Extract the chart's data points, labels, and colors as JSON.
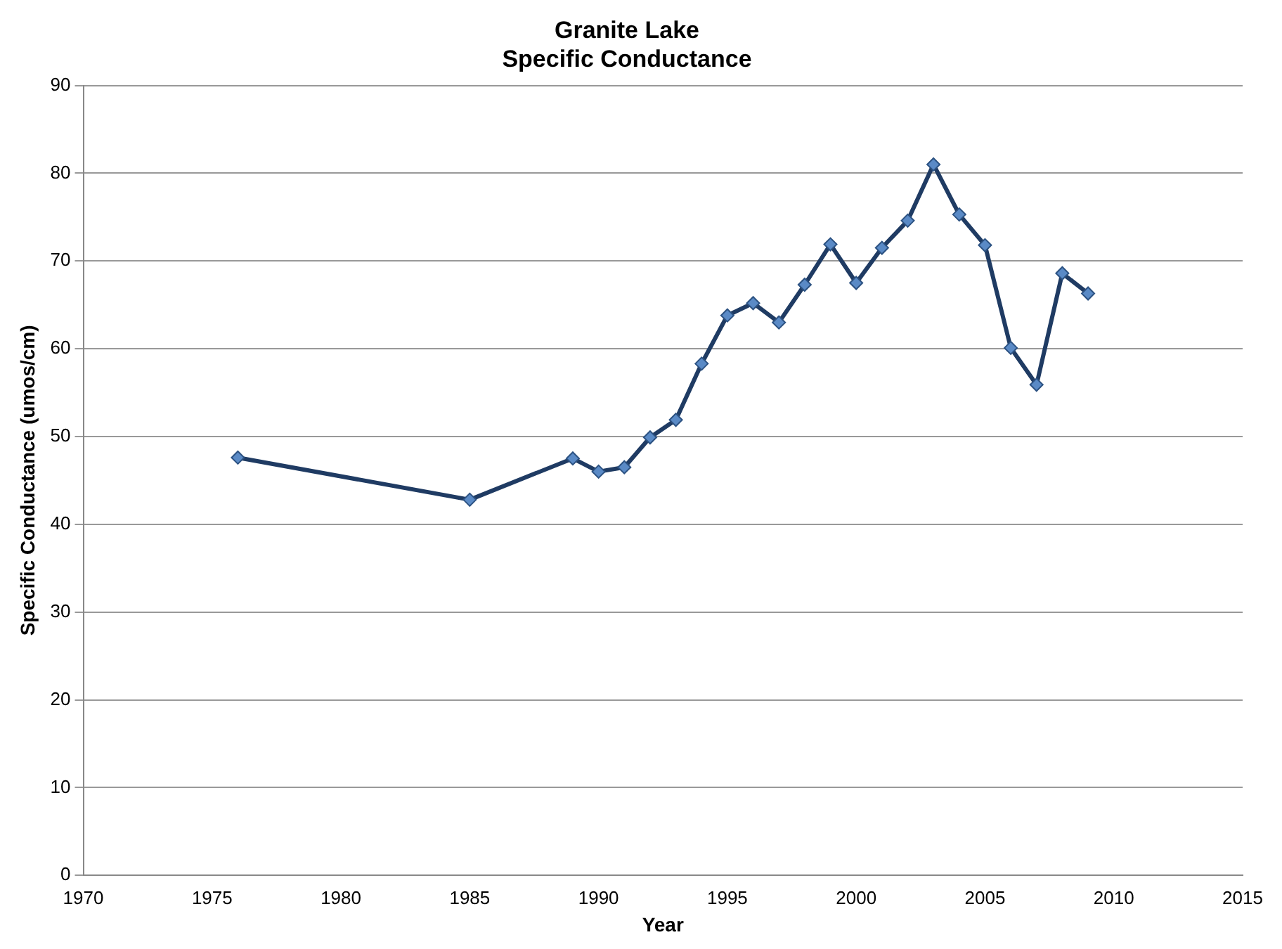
{
  "chart_data": {
    "type": "line",
    "title": "Granite Lake\nSpecific Conductance",
    "xlabel": "Year",
    "ylabel": "Specific Conductance (umos/cm)",
    "x": [
      1976,
      1985,
      1989,
      1990,
      1991,
      1992,
      1993,
      1994,
      1995,
      1996,
      1997,
      1998,
      1999,
      2000,
      2001,
      2002,
      2003,
      2004,
      2005,
      2006,
      2007,
      2008,
      2009
    ],
    "series": [
      {
        "color": "#1f3b63",
        "values": [
          47.6,
          42.8,
          47.5,
          46.0,
          46.5,
          49.9,
          51.9,
          58.3,
          63.8,
          65.2,
          63.0,
          67.3,
          71.9,
          67.5,
          71.5,
          74.6,
          81.0,
          75.3,
          71.8,
          60.1,
          55.9,
          68.6,
          66.3
        ]
      }
    ],
    "xlim": [
      1970,
      2015
    ],
    "xticks": [
      1970,
      1975,
      1980,
      1985,
      1990,
      1995,
      2000,
      2005,
      2010,
      2015
    ],
    "ylim": [
      0,
      90
    ],
    "yticks": [
      0,
      10,
      20,
      30,
      40,
      50,
      60,
      70,
      80,
      90
    ],
    "grid": "y",
    "legend": false,
    "marker": "diamond",
    "line_style": "solid"
  }
}
